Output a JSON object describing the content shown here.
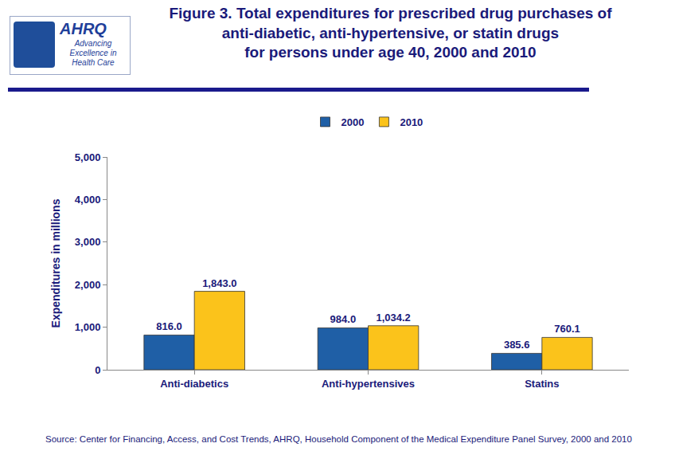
{
  "chart_data": {
    "type": "bar",
    "title": "Figure 3. Total expenditures for prescribed drug purchases of\nanti-diabetic, anti-hypertensive, or statin drugs\nfor persons under age 40, 2000 and 2010",
    "y_label": "Expenditures in millions",
    "categories": [
      "Anti-diabetics",
      "Anti-hypertensives",
      "Statins"
    ],
    "series": [
      {
        "name": "2000",
        "color": "#1f5fa6",
        "values": [
          816.0,
          984.0,
          385.6
        ],
        "value_labels": [
          "816.0",
          "984.0",
          "385.6"
        ]
      },
      {
        "name": "2010",
        "color": "#fbc31b",
        "values": [
          1843.0,
          1034.2,
          760.1
        ],
        "value_labels": [
          "1,843.0",
          "1,034.2",
          "760.1"
        ]
      }
    ],
    "ylim": [
      0,
      5000
    ],
    "yticks": [
      0,
      {
        "value": 1000,
        "label": "1,000"
      },
      {
        "value": 2000,
        "label": "2,000"
      },
      {
        "value": 3000,
        "label": "3,000"
      },
      {
        "value": 4000,
        "label": "4,000"
      },
      {
        "value": 5000,
        "label": "5,000"
      }
    ],
    "grid": false,
    "legend": "top",
    "data_labels": true,
    "annotations": [
      "Source: Center for Financing, Access, and Cost Trends, AHRQ, Household Component of the Medical Expenditure Panel Survey, 2000 and 2010",
      "AHRQ",
      "Advancing Excellence in Health Care"
    ]
  }
}
